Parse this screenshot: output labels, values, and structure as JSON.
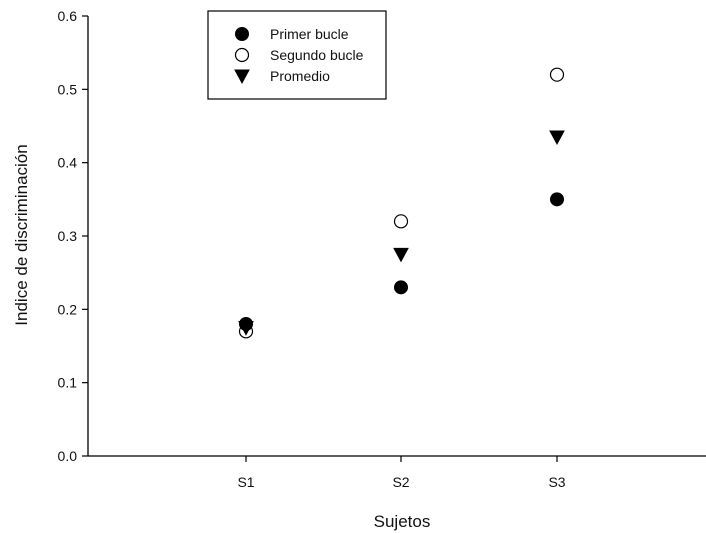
{
  "chart_data": {
    "type": "scatter",
    "xlabel": "Sujetos",
    "ylabel": "Indice de discriminación",
    "categories": [
      "S1",
      "S2",
      "S3"
    ],
    "ylim": [
      0.0,
      0.6
    ],
    "yticks": [
      "0.0",
      "0.1",
      "0.2",
      "0.3",
      "0.4",
      "0.5",
      "0.6"
    ],
    "grid": false,
    "legend_position": "top-left",
    "series": [
      {
        "name": "Primer bucle",
        "marker": "filled-circle",
        "color": "#000000",
        "values": [
          0.18,
          0.23,
          0.35
        ]
      },
      {
        "name": "Segundo bucle",
        "marker": "open-circle",
        "color": "#000000",
        "values": [
          0.17,
          0.32,
          0.52
        ]
      },
      {
        "name": "Promedio",
        "marker": "down-triangle",
        "color": "#000000",
        "values": [
          0.175,
          0.275,
          0.435
        ]
      }
    ]
  }
}
